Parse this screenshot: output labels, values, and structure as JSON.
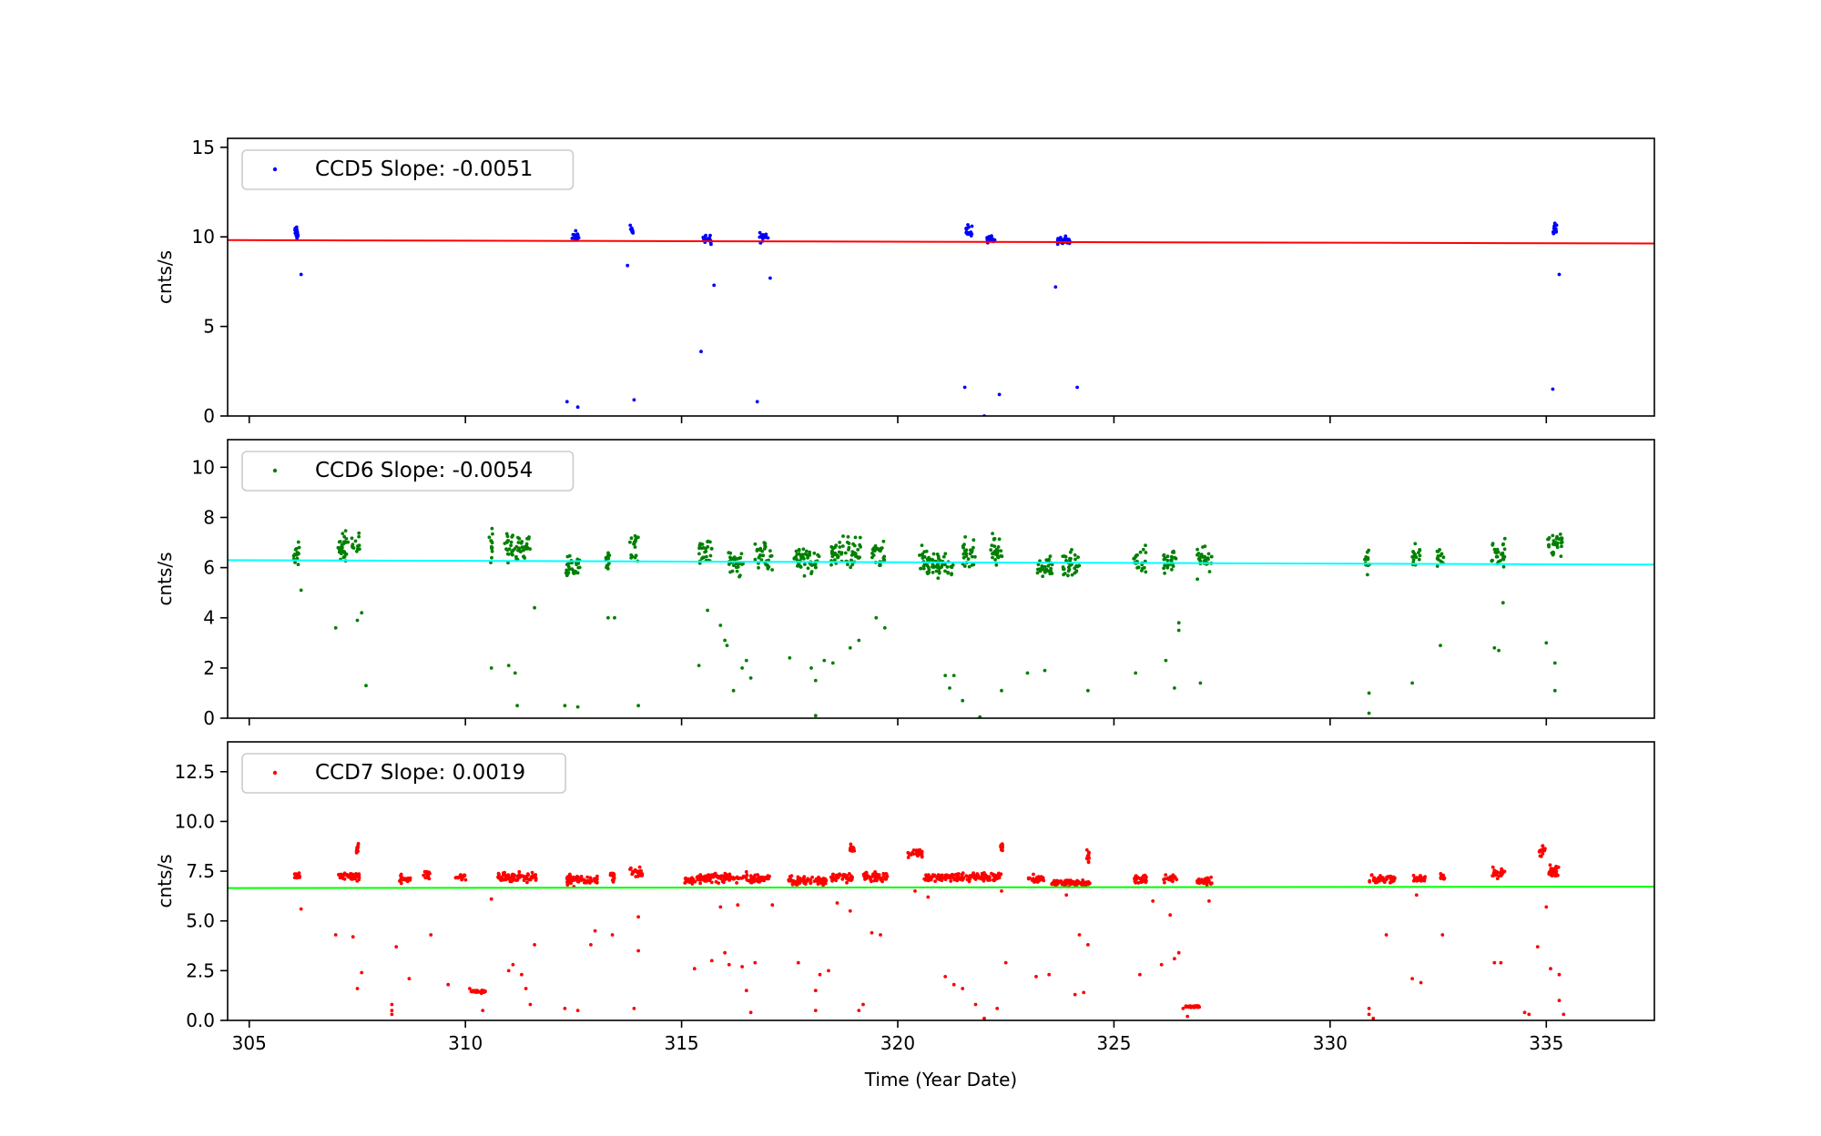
{
  "chart_data": [
    {
      "type": "scatter",
      "title": "",
      "xlabel": "",
      "ylabel": "cnts/s",
      "xlim": [
        304.5,
        337.5
      ],
      "ylim": [
        0,
        15.5
      ],
      "yticks": [
        0,
        5,
        10,
        15
      ],
      "ytick_labels": [
        "0",
        "5",
        "10",
        "15"
      ],
      "xticks": [
        305,
        310,
        315,
        320,
        325,
        330,
        335
      ],
      "grid": false,
      "legend": {
        "placement": "top-left",
        "label": "CCD5 Slope: -0.0051"
      },
      "point_color": "#0000ff",
      "fit_color": "#ff0000",
      "fit_line": {
        "x": [
          304.5,
          337.5
        ],
        "y": [
          9.82,
          9.63
        ]
      },
      "clusters": [
        {
          "center": 306.1,
          "width": 0.1,
          "mean": 10.2,
          "spread": 0.3
        },
        {
          "center": 312.55,
          "width": 0.2,
          "mean": 10.0,
          "spread": 0.25
        },
        {
          "center": 313.85,
          "width": 0.1,
          "mean": 10.35,
          "spread": 0.2
        },
        {
          "center": 315.6,
          "width": 0.2,
          "mean": 9.9,
          "spread": 0.25
        },
        {
          "center": 316.9,
          "width": 0.2,
          "mean": 10.0,
          "spread": 0.3
        },
        {
          "center": 321.65,
          "width": 0.15,
          "mean": 10.3,
          "spread": 0.3
        },
        {
          "center": 322.15,
          "width": 0.2,
          "mean": 9.85,
          "spread": 0.25
        },
        {
          "center": 323.85,
          "width": 0.3,
          "mean": 9.8,
          "spread": 0.2
        },
        {
          "center": 335.2,
          "width": 0.1,
          "mean": 10.4,
          "spread": 0.3
        }
      ],
      "outliers": [
        [
          306.2,
          7.9
        ],
        [
          312.35,
          0.8
        ],
        [
          312.6,
          0.5
        ],
        [
          313.75,
          8.4
        ],
        [
          313.9,
          0.9
        ],
        [
          315.45,
          3.6
        ],
        [
          315.75,
          7.3
        ],
        [
          316.75,
          0.8
        ],
        [
          317.05,
          7.7
        ],
        [
          321.55,
          1.6
        ],
        [
          322.0,
          0.0
        ],
        [
          322.35,
          1.2
        ],
        [
          323.65,
          7.2
        ],
        [
          324.15,
          1.6
        ],
        [
          335.15,
          1.5
        ],
        [
          335.3,
          7.9
        ]
      ]
    },
    {
      "type": "scatter",
      "title": "",
      "xlabel": "",
      "ylabel": "cnts/s",
      "xlim": [
        304.5,
        337.5
      ],
      "ylim": [
        0,
        11.1
      ],
      "yticks": [
        0,
        2,
        4,
        6,
        8,
        10
      ],
      "ytick_labels": [
        "0",
        "2",
        "4",
        "6",
        "8",
        "10"
      ],
      "xticks": [
        305,
        310,
        315,
        320,
        325,
        330,
        335
      ],
      "grid": false,
      "legend": {
        "placement": "top-left",
        "label": "CCD6 Slope: -0.0054"
      },
      "point_color": "#008000",
      "fit_color": "#00ffff",
      "fit_line": {
        "x": [
          304.5,
          337.5
        ],
        "y": [
          6.3,
          6.12
        ]
      },
      "clusters": [
        {
          "center": 306.1,
          "width": 0.15,
          "mean": 6.4,
          "spread": 0.6
        },
        {
          "center": 307.3,
          "width": 0.5,
          "mean": 6.8,
          "spread": 0.6
        },
        {
          "center": 310.6,
          "width": 0.1,
          "mean": 7.0,
          "spread": 0.8
        },
        {
          "center": 311.2,
          "width": 0.6,
          "mean": 6.7,
          "spread": 0.55
        },
        {
          "center": 312.5,
          "width": 0.35,
          "mean": 6.1,
          "spread": 0.5
        },
        {
          "center": 313.3,
          "width": 0.1,
          "mean": 6.4,
          "spread": 0.6
        },
        {
          "center": 313.9,
          "width": 0.2,
          "mean": 6.8,
          "spread": 0.6
        },
        {
          "center": 315.55,
          "width": 0.3,
          "mean": 6.6,
          "spread": 0.65
        },
        {
          "center": 316.25,
          "width": 0.35,
          "mean": 6.2,
          "spread": 0.5
        },
        {
          "center": 316.9,
          "width": 0.4,
          "mean": 6.5,
          "spread": 0.55
        },
        {
          "center": 317.9,
          "width": 0.6,
          "mean": 6.3,
          "spread": 0.55
        },
        {
          "center": 318.8,
          "width": 0.7,
          "mean": 6.6,
          "spread": 0.6
        },
        {
          "center": 319.55,
          "width": 0.3,
          "mean": 6.5,
          "spread": 0.55
        },
        {
          "center": 320.9,
          "width": 0.8,
          "mean": 6.2,
          "spread": 0.55
        },
        {
          "center": 321.65,
          "width": 0.3,
          "mean": 6.6,
          "spread": 0.6
        },
        {
          "center": 322.3,
          "width": 0.3,
          "mean": 6.7,
          "spread": 0.55
        },
        {
          "center": 323.4,
          "width": 0.35,
          "mean": 6.0,
          "spread": 0.5
        },
        {
          "center": 324.0,
          "width": 0.4,
          "mean": 6.1,
          "spread": 0.5
        },
        {
          "center": 325.6,
          "width": 0.3,
          "mean": 6.2,
          "spread": 0.5
        },
        {
          "center": 326.3,
          "width": 0.3,
          "mean": 6.3,
          "spread": 0.5
        },
        {
          "center": 327.1,
          "width": 0.35,
          "mean": 6.3,
          "spread": 0.5
        },
        {
          "center": 330.85,
          "width": 0.15,
          "mean": 6.4,
          "spread": 0.6
        },
        {
          "center": 332.0,
          "width": 0.2,
          "mean": 6.5,
          "spread": 0.5
        },
        {
          "center": 332.55,
          "width": 0.15,
          "mean": 6.4,
          "spread": 0.5
        },
        {
          "center": 333.9,
          "width": 0.35,
          "mean": 6.5,
          "spread": 0.55
        },
        {
          "center": 335.2,
          "width": 0.35,
          "mean": 6.9,
          "spread": 0.5
        }
      ],
      "outliers": [
        [
          306.2,
          5.1
        ],
        [
          307.0,
          3.6
        ],
        [
          307.5,
          3.9
        ],
        [
          307.6,
          4.2
        ],
        [
          307.7,
          1.3
        ],
        [
          310.6,
          2.0
        ],
        [
          311.0,
          2.1
        ],
        [
          311.2,
          0.5
        ],
        [
          311.15,
          1.8
        ],
        [
          311.6,
          4.4
        ],
        [
          312.3,
          0.5
        ],
        [
          312.6,
          0.45
        ],
        [
          313.3,
          4.0
        ],
        [
          313.45,
          4.0
        ],
        [
          314.0,
          0.5
        ],
        [
          315.4,
          2.1
        ],
        [
          315.6,
          4.3
        ],
        [
          315.9,
          3.7
        ],
        [
          316.0,
          3.1
        ],
        [
          316.05,
          2.9
        ],
        [
          316.4,
          2.0
        ],
        [
          316.5,
          2.3
        ],
        [
          316.6,
          1.6
        ],
        [
          316.2,
          1.1
        ],
        [
          317.5,
          2.4
        ],
        [
          318.0,
          2.0
        ],
        [
          318.1,
          1.5
        ],
        [
          318.1,
          0.1
        ],
        [
          318.3,
          2.3
        ],
        [
          318.5,
          2.2
        ],
        [
          318.9,
          2.8
        ],
        [
          319.1,
          3.1
        ],
        [
          319.5,
          4.0
        ],
        [
          319.7,
          3.6
        ],
        [
          321.1,
          1.7
        ],
        [
          321.2,
          1.2
        ],
        [
          321.3,
          1.7
        ],
        [
          321.5,
          0.7
        ],
        [
          321.9,
          0.05
        ],
        [
          322.4,
          1.1
        ],
        [
          323.0,
          1.8
        ],
        [
          323.4,
          1.9
        ],
        [
          324.4,
          1.1
        ],
        [
          325.5,
          1.8
        ],
        [
          326.2,
          2.3
        ],
        [
          326.5,
          3.5
        ],
        [
          326.5,
          3.8
        ],
        [
          326.4,
          1.2
        ],
        [
          327.0,
          1.4
        ],
        [
          330.9,
          1.0
        ],
        [
          330.9,
          0.2
        ],
        [
          331.9,
          1.4
        ],
        [
          332.55,
          2.9
        ],
        [
          333.8,
          2.8
        ],
        [
          333.9,
          2.7
        ],
        [
          334.0,
          4.6
        ],
        [
          335.0,
          3.0
        ],
        [
          335.2,
          2.2
        ],
        [
          335.2,
          1.1
        ]
      ]
    },
    {
      "type": "scatter",
      "title": "",
      "xlabel": "Time (Year Date)",
      "ylabel": "cnts/s",
      "xlim": [
        304.5,
        337.5
      ],
      "ylim": [
        0,
        14.0
      ],
      "yticks": [
        0,
        2.5,
        5,
        7.5,
        10,
        12.5
      ],
      "ytick_labels": [
        "0.0",
        "2.5",
        "5.0",
        "7.5",
        "10.0",
        "12.5"
      ],
      "xticks": [
        305,
        310,
        315,
        320,
        325,
        330,
        335
      ],
      "xtick_labels": [
        "305",
        "310",
        "315",
        "320",
        "325",
        "330",
        "335"
      ],
      "grid": false,
      "legend": {
        "placement": "top-left",
        "label": "CCD7 Slope: 0.0019"
      },
      "point_color": "#ff0000",
      "fit_color": "#00ff00",
      "fit_line": {
        "x": [
          304.5,
          337.5
        ],
        "y": [
          6.65,
          6.72
        ]
      },
      "clusters": [
        {
          "center": 306.1,
          "width": 0.15,
          "mean": 7.3,
          "spread": 0.2
        },
        {
          "center": 307.3,
          "width": 0.5,
          "mean": 7.25,
          "spread": 0.2
        },
        {
          "center": 307.5,
          "width": 0.05,
          "mean": 8.6,
          "spread": 0.3
        },
        {
          "center": 308.6,
          "width": 0.25,
          "mean": 7.1,
          "spread": 0.2
        },
        {
          "center": 309.1,
          "width": 0.15,
          "mean": 7.3,
          "spread": 0.2
        },
        {
          "center": 309.9,
          "width": 0.25,
          "mean": 7.2,
          "spread": 0.2
        },
        {
          "center": 310.3,
          "width": 0.35,
          "mean": 1.45,
          "spread": 0.07
        },
        {
          "center": 311.2,
          "width": 0.9,
          "mean": 7.2,
          "spread": 0.22
        },
        {
          "center": 312.7,
          "width": 0.7,
          "mean": 7.05,
          "spread": 0.22
        },
        {
          "center": 313.4,
          "width": 0.1,
          "mean": 7.2,
          "spread": 0.2
        },
        {
          "center": 313.95,
          "width": 0.3,
          "mean": 7.4,
          "spread": 0.25
        },
        {
          "center": 315.2,
          "width": 0.25,
          "mean": 7.0,
          "spread": 0.2
        },
        {
          "center": 316.2,
          "width": 1.7,
          "mean": 7.15,
          "spread": 0.22
        },
        {
          "center": 317.9,
          "width": 0.9,
          "mean": 7.0,
          "spread": 0.2
        },
        {
          "center": 318.7,
          "width": 0.5,
          "mean": 7.2,
          "spread": 0.22
        },
        {
          "center": 318.95,
          "width": 0.1,
          "mean": 8.6,
          "spread": 0.2
        },
        {
          "center": 319.5,
          "width": 0.6,
          "mean": 7.2,
          "spread": 0.22
        },
        {
          "center": 320.4,
          "width": 0.35,
          "mean": 8.4,
          "spread": 0.2
        },
        {
          "center": 321.5,
          "width": 1.8,
          "mean": 7.2,
          "spread": 0.2
        },
        {
          "center": 322.4,
          "width": 0.05,
          "mean": 8.7,
          "spread": 0.2
        },
        {
          "center": 323.2,
          "width": 0.35,
          "mean": 7.1,
          "spread": 0.2
        },
        {
          "center": 324.0,
          "width": 0.9,
          "mean": 6.9,
          "spread": 0.15
        },
        {
          "center": 324.4,
          "width": 0.05,
          "mean": 8.3,
          "spread": 0.3
        },
        {
          "center": 325.6,
          "width": 0.3,
          "mean": 7.1,
          "spread": 0.2
        },
        {
          "center": 326.3,
          "width": 0.3,
          "mean": 7.1,
          "spread": 0.2
        },
        {
          "center": 326.8,
          "width": 0.35,
          "mean": 0.7,
          "spread": 0.05
        },
        {
          "center": 327.1,
          "width": 0.35,
          "mean": 7.0,
          "spread": 0.2
        },
        {
          "center": 331.2,
          "width": 0.6,
          "mean": 7.1,
          "spread": 0.2
        },
        {
          "center": 332.05,
          "width": 0.3,
          "mean": 7.1,
          "spread": 0.2
        },
        {
          "center": 332.6,
          "width": 0.1,
          "mean": 7.2,
          "spread": 0.15
        },
        {
          "center": 333.9,
          "width": 0.3,
          "mean": 7.4,
          "spread": 0.25
        },
        {
          "center": 334.9,
          "width": 0.15,
          "mean": 8.6,
          "spread": 0.3
        },
        {
          "center": 335.2,
          "width": 0.3,
          "mean": 7.5,
          "spread": 0.3
        }
      ],
      "outliers": [
        [
          306.2,
          5.6
        ],
        [
          307.0,
          4.3
        ],
        [
          307.4,
          4.2
        ],
        [
          307.6,
          2.4
        ],
        [
          307.5,
          1.6
        ],
        [
          308.4,
          3.7
        ],
        [
          308.3,
          0.8
        ],
        [
          308.3,
          0.5
        ],
        [
          308.3,
          0.3
        ],
        [
          308.7,
          2.1
        ],
        [
          309.2,
          4.3
        ],
        [
          309.6,
          1.8
        ],
        [
          310.1,
          1.6
        ],
        [
          310.4,
          0.5
        ],
        [
          310.6,
          6.1
        ],
        [
          311.0,
          2.5
        ],
        [
          311.1,
          2.8
        ],
        [
          311.3,
          2.3
        ],
        [
          311.4,
          1.6
        ],
        [
          311.5,
          0.8
        ],
        [
          311.6,
          3.8
        ],
        [
          312.3,
          0.6
        ],
        [
          312.6,
          0.5
        ],
        [
          312.9,
          3.8
        ],
        [
          313.0,
          4.5
        ],
        [
          313.4,
          4.3
        ],
        [
          313.9,
          0.6
        ],
        [
          314.0,
          5.2
        ],
        [
          314.0,
          3.5
        ],
        [
          315.3,
          2.6
        ],
        [
          315.7,
          3.0
        ],
        [
          315.9,
          5.7
        ],
        [
          316.0,
          3.4
        ],
        [
          316.1,
          2.8
        ],
        [
          316.3,
          5.8
        ],
        [
          316.4,
          2.7
        ],
        [
          316.5,
          1.5
        ],
        [
          316.6,
          0.4
        ],
        [
          316.7,
          2.9
        ],
        [
          317.1,
          5.8
        ],
        [
          317.7,
          2.9
        ],
        [
          318.1,
          1.5
        ],
        [
          318.1,
          0.5
        ],
        [
          318.2,
          2.3
        ],
        [
          318.4,
          2.5
        ],
        [
          318.6,
          5.9
        ],
        [
          318.9,
          5.5
        ],
        [
          319.1,
          0.5
        ],
        [
          319.2,
          0.8
        ],
        [
          319.4,
          4.4
        ],
        [
          319.6,
          4.3
        ],
        [
          320.4,
          6.5
        ],
        [
          320.7,
          6.2
        ],
        [
          321.1,
          2.2
        ],
        [
          321.3,
          1.8
        ],
        [
          321.5,
          1.6
        ],
        [
          321.8,
          0.8
        ],
        [
          322.0,
          0.1
        ],
        [
          322.3,
          0.6
        ],
        [
          322.5,
          2.9
        ],
        [
          322.4,
          6.5
        ],
        [
          323.2,
          2.2
        ],
        [
          323.5,
          2.3
        ],
        [
          323.9,
          6.3
        ],
        [
          324.2,
          4.3
        ],
        [
          324.4,
          3.8
        ],
        [
          324.3,
          1.4
        ],
        [
          324.1,
          1.3
        ],
        [
          325.6,
          2.3
        ],
        [
          325.9,
          6.0
        ],
        [
          326.1,
          2.8
        ],
        [
          326.3,
          5.3
        ],
        [
          326.5,
          3.4
        ],
        [
          326.4,
          3.1
        ],
        [
          326.6,
          0.6
        ],
        [
          326.7,
          0.2
        ],
        [
          327.2,
          6.0
        ],
        [
          330.9,
          0.6
        ],
        [
          330.9,
          0.3
        ],
        [
          331.0,
          0.1
        ],
        [
          331.3,
          4.3
        ],
        [
          332.0,
          6.3
        ],
        [
          331.9,
          2.1
        ],
        [
          332.1,
          1.9
        ],
        [
          332.6,
          4.3
        ],
        [
          333.8,
          2.9
        ],
        [
          333.95,
          2.9
        ],
        [
          334.5,
          0.4
        ],
        [
          334.6,
          0.3
        ],
        [
          334.8,
          3.7
        ],
        [
          335.0,
          5.7
        ],
        [
          335.1,
          2.6
        ],
        [
          335.3,
          2.3
        ],
        [
          335.3,
          1.0
        ],
        [
          335.4,
          0.3
        ]
      ]
    }
  ]
}
